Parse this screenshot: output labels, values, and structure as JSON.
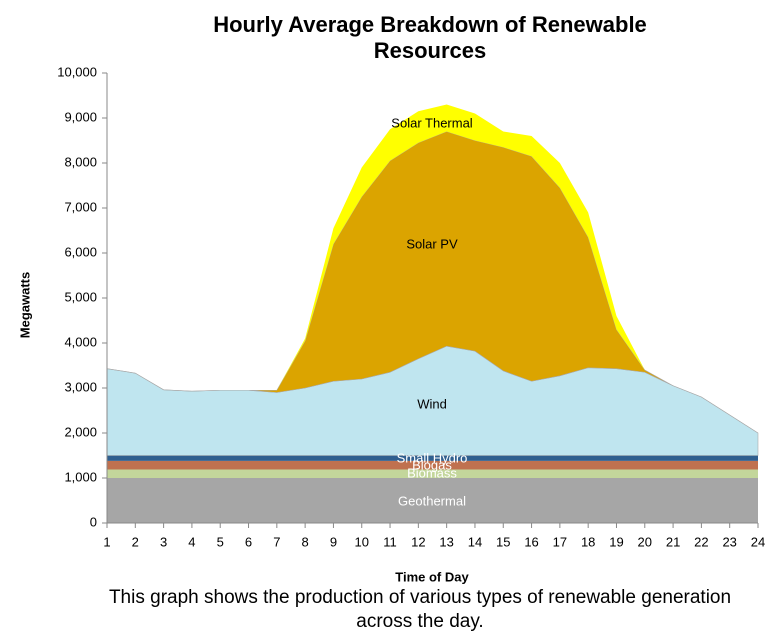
{
  "chart_data": {
    "type": "stacked_area",
    "title": "Hourly Average Breakdown of Renewable Resources",
    "caption": "This graph shows the production of various types of renewable generation across the day.",
    "x_label": "Time of Day",
    "y_label": "Megawatts",
    "x": [
      1,
      2,
      3,
      4,
      5,
      6,
      7,
      8,
      9,
      10,
      11,
      12,
      13,
      14,
      15,
      16,
      17,
      18,
      19,
      20,
      21,
      22,
      23,
      24
    ],
    "xlim": [
      1,
      24
    ],
    "xticks": [
      1,
      2,
      3,
      4,
      5,
      6,
      7,
      8,
      9,
      10,
      11,
      12,
      13,
      14,
      15,
      16,
      17,
      18,
      19,
      20,
      21,
      22,
      23,
      24
    ],
    "ylim": [
      0,
      10000
    ],
    "yticks": [
      0,
      {
        "value": 1000,
        "label": "1,000"
      },
      {
        "value": 2000,
        "label": "2,000"
      },
      {
        "value": 3000,
        "label": "3,000"
      },
      {
        "value": 4000,
        "label": "4,000"
      },
      {
        "value": 5000,
        "label": "5,000"
      },
      {
        "value": 6000,
        "label": "6,000"
      },
      {
        "value": 7000,
        "label": "7,000"
      },
      {
        "value": 8000,
        "label": "8,000"
      },
      {
        "value": 9000,
        "label": "9,000"
      },
      {
        "value": 10000,
        "label": "10,000"
      }
    ],
    "grid": false,
    "series": [
      {
        "name": "Geothermal",
        "color": "#a6a6a6",
        "values": [
          1000,
          1000,
          1000,
          1000,
          1000,
          1000,
          1000,
          1000,
          1000,
          1000,
          1000,
          1000,
          1000,
          1000,
          1000,
          1000,
          1000,
          1000,
          1000,
          1000,
          1000,
          1000,
          1000,
          1000
        ]
      },
      {
        "name": "Biomass",
        "color": "#c3d69b",
        "values": [
          190,
          190,
          190,
          190,
          190,
          190,
          190,
          190,
          190,
          190,
          190,
          190,
          190,
          190,
          190,
          190,
          190,
          190,
          190,
          190,
          190,
          190,
          190,
          190
        ]
      },
      {
        "name": "Biogas",
        "color": "#c0714f",
        "values": [
          190,
          190,
          190,
          190,
          190,
          190,
          190,
          190,
          190,
          190,
          190,
          190,
          190,
          190,
          190,
          190,
          190,
          190,
          190,
          190,
          190,
          190,
          190,
          190
        ]
      },
      {
        "name": "Small Hydro",
        "color": "#2f5f8f",
        "values": [
          120,
          120,
          120,
          120,
          120,
          120,
          120,
          120,
          120,
          120,
          120,
          120,
          120,
          120,
          120,
          120,
          120,
          120,
          120,
          120,
          120,
          120,
          120,
          120
        ]
      },
      {
        "name": "Wind",
        "color": "#bfe5ef",
        "values": [
          1930,
          1830,
          1460,
          1430,
          1450,
          1450,
          1400,
          1500,
          1650,
          1700,
          1850,
          2150,
          2430,
          2320,
          1880,
          1650,
          1770,
          1950,
          1930,
          1850,
          1550,
          1300,
          900,
          500
        ]
      },
      {
        "name": "Solar PV",
        "color": "#dba400",
        "values": [
          0,
          0,
          0,
          0,
          0,
          0,
          50,
          1050,
          3050,
          4050,
          4700,
          4800,
          4770,
          4680,
          4970,
          5000,
          4180,
          2900,
          870,
          50,
          0,
          0,
          0,
          0
        ]
      },
      {
        "name": "Solar Thermal",
        "color": "#ffff00",
        "values": [
          0,
          0,
          0,
          0,
          0,
          0,
          0,
          50,
          350,
          650,
          700,
          700,
          600,
          600,
          350,
          450,
          550,
          550,
          300,
          0,
          0,
          0,
          0,
          0
        ]
      }
    ]
  }
}
